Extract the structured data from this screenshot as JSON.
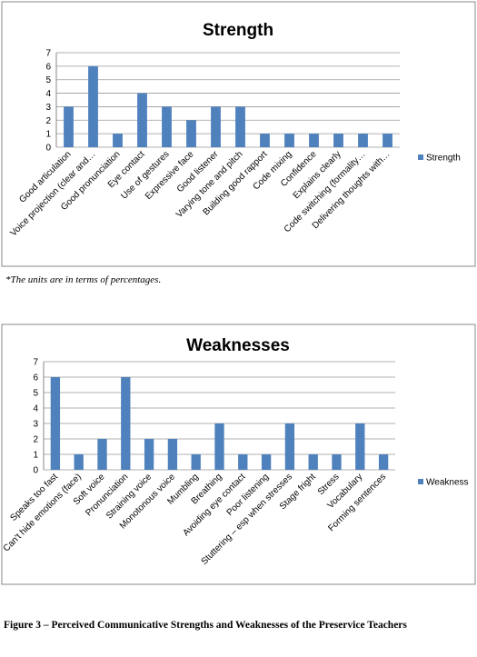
{
  "chart_data": [
    {
      "type": "bar",
      "title": "Strength",
      "categories": [
        "Good articulation",
        "Voice projection (clear and…",
        "Good pronunciation",
        "Eye contact",
        "Use of gestures",
        "Expressive face",
        "Good listener",
        "Varying tone and pitch",
        "Building good rapport",
        "Code mixing",
        "Confidence",
        "Explains clearly",
        "Code switching (formality…",
        "Delivering thoughts with…"
      ],
      "series": [
        {
          "name": "Strength",
          "color": "#4f81bd",
          "values": [
            3,
            6,
            1,
            4,
            3,
            2,
            3,
            3,
            1,
            1,
            1,
            1,
            1,
            1
          ]
        }
      ],
      "ylim": [
        0,
        7
      ],
      "yticks": [
        0,
        1,
        2,
        3,
        4,
        5,
        6,
        7
      ],
      "grid": true,
      "legend": "right"
    },
    {
      "type": "bar",
      "title": "Weaknesses",
      "categories": [
        "Speaks too fast",
        "Can't hide emotions (face)",
        "Soft voice",
        "Pronunciation",
        "Straining voice",
        "Monotonous voice",
        "Mumbling",
        "Breathing",
        "Avoiding eye contact",
        "Poor listening",
        "Stuttering – esp when stresses",
        "Stage fright",
        "Stress",
        "Vocabulary",
        "Forming sentences"
      ],
      "series": [
        {
          "name": "Weakness",
          "color": "#4f81bd",
          "values": [
            6,
            1,
            2,
            6,
            2,
            2,
            1,
            3,
            1,
            1,
            3,
            1,
            1,
            3,
            1
          ]
        }
      ],
      "ylim": [
        0,
        7
      ],
      "yticks": [
        0,
        1,
        2,
        3,
        4,
        5,
        6,
        7
      ],
      "grid": true,
      "legend": "right"
    }
  ],
  "note": "*The units are in terms of percentages.",
  "caption": "Figure 3 – Perceived Communicative Strengths and Weaknesses of the Preservice Teachers"
}
